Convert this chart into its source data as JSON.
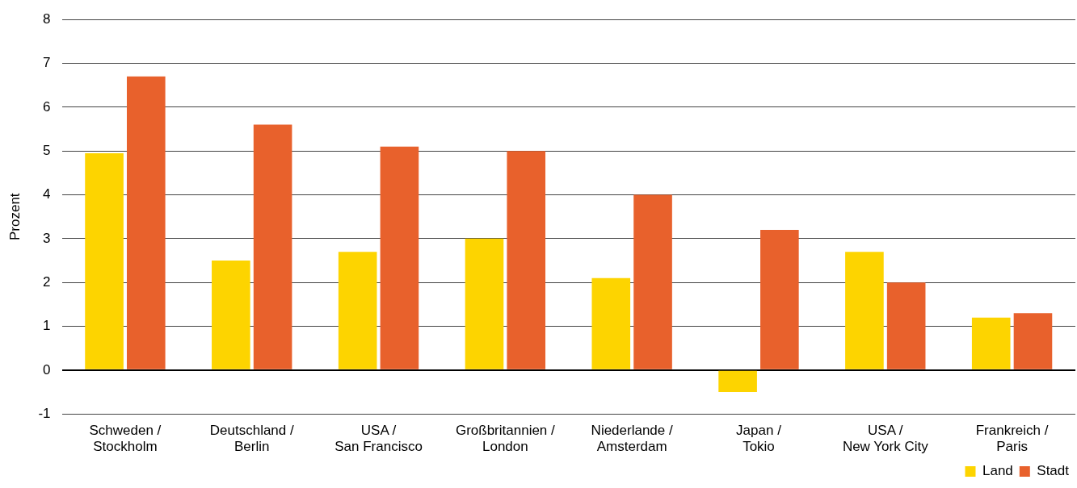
{
  "chart_data": {
    "type": "bar",
    "ylabel": "Prozent",
    "categories": [
      "Schweden / Stockholm",
      "Deutschland / Berlin",
      "USA / San Francisco",
      "Großbritannien / London",
      "Niederlande / Amsterdam",
      "Japan / Tokio",
      "USA / New York City",
      "Frankreich / Paris"
    ],
    "series": [
      {
        "name": "Land",
        "color": "#fdd400",
        "values": [
          4.95,
          2.5,
          2.7,
          3.0,
          2.1,
          -0.5,
          2.7,
          1.2
        ]
      },
      {
        "name": "Stadt",
        "color": "#e8612c",
        "values": [
          6.7,
          5.6,
          5.1,
          5.0,
          4.0,
          3.2,
          2.0,
          1.3
        ]
      }
    ],
    "ylim": [
      -1,
      8
    ],
    "yticks": [
      -1,
      0,
      1,
      2,
      3,
      4,
      5,
      6,
      7,
      8
    ],
    "grid": "y",
    "legend": "bottom right"
  }
}
